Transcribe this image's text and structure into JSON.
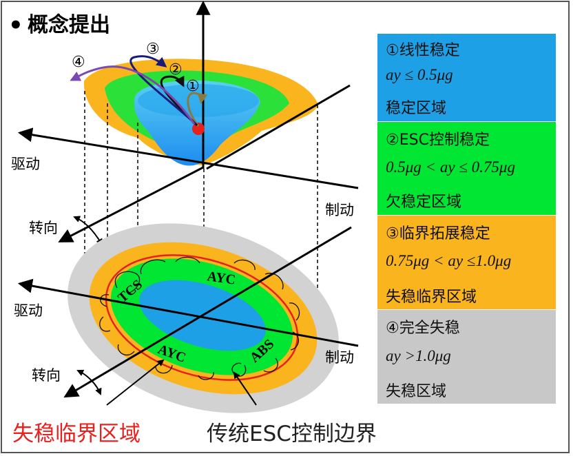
{
  "heading": "概念提出",
  "bullet": "•",
  "colors": {
    "stable": "#1EA0E6",
    "esc": "#00E632",
    "critical": "#FAB41E",
    "unstable": "#C8C8C8",
    "red": "#E6211E"
  },
  "axes": {
    "upper_drive": "驱动",
    "upper_brake": "制动",
    "upper_steer": "转向",
    "lower_drive": "驱动",
    "lower_brake": "制动",
    "lower_steer": "转向"
  },
  "trajectories": [
    "④",
    "③",
    "②",
    "①"
  ],
  "ring_labels": {
    "tcs": "TCS",
    "ayc_top": "AYC",
    "ayc_bottom": "AYC",
    "abs": "ABS"
  },
  "bottom_labels": {
    "critical_region": "失稳临界区域",
    "esc_boundary": "传统ESC控制边界"
  },
  "legend": [
    {
      "title": "①线性稳定",
      "condition": "ay ≤ 0.5μg",
      "region": "稳定区域"
    },
    {
      "title": "②ESC控制稳定",
      "condition": "0.5μg < ay ≤ 0.75μg",
      "region": "欠稳定区域"
    },
    {
      "title": "③临界拓展稳定",
      "condition": "0.75μg < ay ≤1.0μg",
      "region": "失稳临界区域"
    },
    {
      "title": "④完全失稳",
      "condition": "ay >1.0μg",
      "region": "失稳区域"
    }
  ]
}
